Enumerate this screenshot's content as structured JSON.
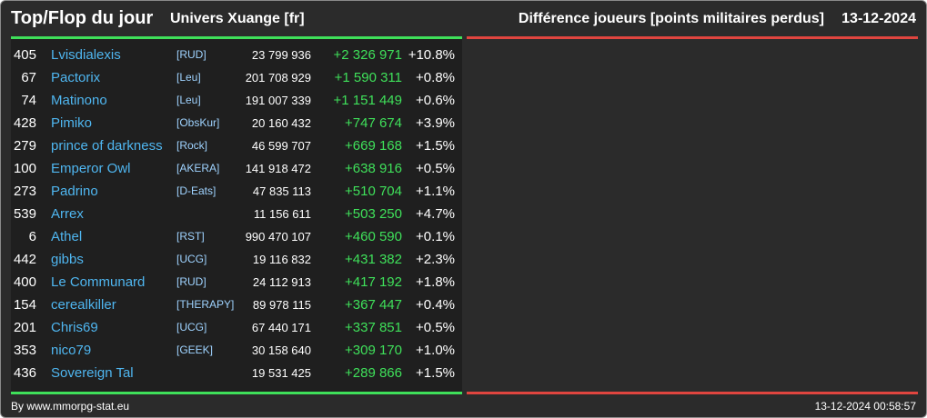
{
  "header": {
    "title": "Top/Flop du jour",
    "universe": "Univers Xuange [fr]",
    "metric": "Différence joueurs [points militaires perdus]",
    "date": "13-12-2024"
  },
  "colors": {
    "up_line": "#3fe05a",
    "down_line": "#e0453f",
    "name": "#4fb6f0",
    "diff": "#3fe05a"
  },
  "rows": [
    {
      "rank": "405",
      "name": "Lvisdialexis",
      "alliance": "[RUD]",
      "score": "23 799 936",
      "diff": "+2 326 971",
      "pct": "+10.8%"
    },
    {
      "rank": "67",
      "name": "Pactorix",
      "alliance": "[Leu]",
      "score": "201 708 929",
      "diff": "+1 590 311",
      "pct": "+0.8%"
    },
    {
      "rank": "74",
      "name": "Matinono",
      "alliance": "[Leu]",
      "score": "191 007 339",
      "diff": "+1 151 449",
      "pct": "+0.6%"
    },
    {
      "rank": "428",
      "name": "Pimiko",
      "alliance": "[ObsKur]",
      "score": "20 160 432",
      "diff": "+747 674",
      "pct": "+3.9%"
    },
    {
      "rank": "279",
      "name": "prince of darkness",
      "alliance": "[Rock]",
      "score": "46 599 707",
      "diff": "+669 168",
      "pct": "+1.5%"
    },
    {
      "rank": "100",
      "name": "Emperor Owl",
      "alliance": "[AKERA]",
      "score": "141 918 472",
      "diff": "+638 916",
      "pct": "+0.5%"
    },
    {
      "rank": "273",
      "name": "Padrino",
      "alliance": "[D-Eats]",
      "score": "47 835 113",
      "diff": "+510 704",
      "pct": "+1.1%"
    },
    {
      "rank": "539",
      "name": "Arrex",
      "alliance": "",
      "score": "11 156 611",
      "diff": "+503 250",
      "pct": "+4.7%"
    },
    {
      "rank": "6",
      "name": "Athel",
      "alliance": "[RST]",
      "score": "990 470 107",
      "diff": "+460 590",
      "pct": "+0.1%"
    },
    {
      "rank": "442",
      "name": "gibbs",
      "alliance": "[UCG]",
      "score": "19 116 832",
      "diff": "+431 382",
      "pct": "+2.3%"
    },
    {
      "rank": "400",
      "name": "Le Communard",
      "alliance": "[RUD]",
      "score": "24 112 913",
      "diff": "+417 192",
      "pct": "+1.8%"
    },
    {
      "rank": "154",
      "name": "cerealkiller",
      "alliance": "[THERAPY]",
      "score": "89 978 115",
      "diff": "+367 447",
      "pct": "+0.4%"
    },
    {
      "rank": "201",
      "name": "Chris69",
      "alliance": "[UCG]",
      "score": "67 440 171",
      "diff": "+337 851",
      "pct": "+0.5%"
    },
    {
      "rank": "353",
      "name": "nico79",
      "alliance": "[GEEK]",
      "score": "30 158 640",
      "diff": "+309 170",
      "pct": "+1.0%"
    },
    {
      "rank": "436",
      "name": "Sovereign Tal",
      "alliance": "",
      "score": "19 531 425",
      "diff": "+289 866",
      "pct": "+1.5%"
    }
  ],
  "footer": {
    "credit": "By www.mmorpg-stat.eu",
    "timestamp": "13-12-2024 00:58:57"
  }
}
